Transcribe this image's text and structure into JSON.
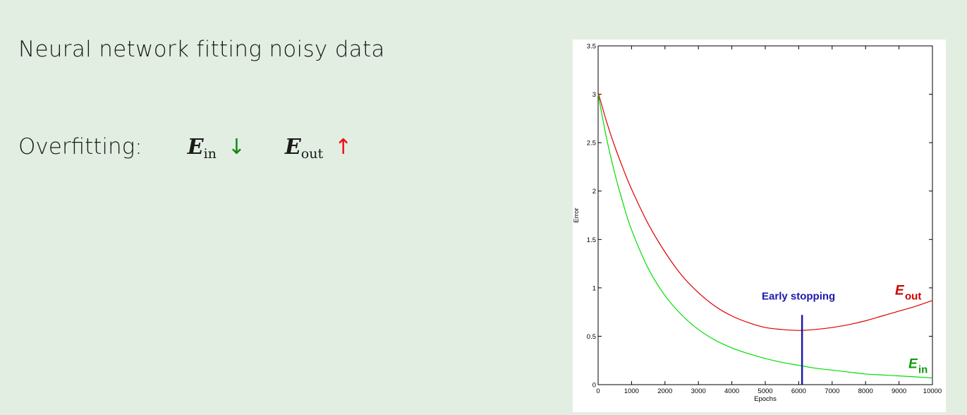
{
  "slide": {
    "title": "Neural network fitting noisy data",
    "overfitting_label": "Overfitting:",
    "ein_symbol": "E",
    "ein_sub": "in",
    "ein_arrow": "↓",
    "eout_symbol": "E",
    "eout_sub": "out",
    "eout_arrow": "↑"
  },
  "colors": {
    "ein": "#00dd00",
    "ein_label": "#119911",
    "eout": "#dd0000",
    "eout_label": "#cc0000",
    "stop": "#1a1aa8",
    "down_arrow": "#118811",
    "up_arrow": "#ee1111"
  },
  "chart_data": {
    "type": "line",
    "xlabel": "Epochs",
    "ylabel": "Error",
    "xlim": [
      0,
      10000
    ],
    "ylim": [
      0,
      3.5
    ],
    "xticks": [
      "0",
      "1000",
      "2000",
      "3000",
      "4000",
      "5000",
      "6000",
      "7000",
      "8000",
      "9000",
      "10000"
    ],
    "yticks": [
      "0",
      "0.5",
      "1",
      "1.5",
      "2",
      "2.5",
      "3",
      "3.5"
    ],
    "grid": false,
    "series": [
      {
        "name": "E_out",
        "label_main": "E",
        "label_sub": "out",
        "x": [
          0,
          250,
          500,
          750,
          1000,
          1500,
          2000,
          2500,
          3000,
          3500,
          4000,
          4500,
          5000,
          5500,
          6000,
          6500,
          7000,
          7500,
          8000,
          8500,
          9000,
          9500,
          10000
        ],
        "y": [
          3.02,
          2.72,
          2.46,
          2.23,
          2.02,
          1.66,
          1.37,
          1.13,
          0.95,
          0.81,
          0.71,
          0.64,
          0.59,
          0.57,
          0.56,
          0.57,
          0.59,
          0.62,
          0.66,
          0.71,
          0.76,
          0.81,
          0.87
        ]
      },
      {
        "name": "E_in",
        "label_main": "E",
        "label_sub": "in",
        "x": [
          0,
          250,
          500,
          750,
          1000,
          1500,
          2000,
          2500,
          3000,
          3500,
          4000,
          4500,
          5000,
          5500,
          6000,
          6500,
          7000,
          7500,
          8000,
          8500,
          9000,
          9500,
          10000
        ],
        "y": [
          3.0,
          2.55,
          2.18,
          1.87,
          1.6,
          1.2,
          0.92,
          0.72,
          0.57,
          0.46,
          0.38,
          0.32,
          0.27,
          0.23,
          0.2,
          0.17,
          0.15,
          0.13,
          0.11,
          0.1,
          0.09,
          0.08,
          0.07
        ]
      }
    ],
    "annotation": {
      "text": "Early stopping",
      "x": 6100,
      "y_top": 0.72,
      "y_bottom": 0
    }
  }
}
